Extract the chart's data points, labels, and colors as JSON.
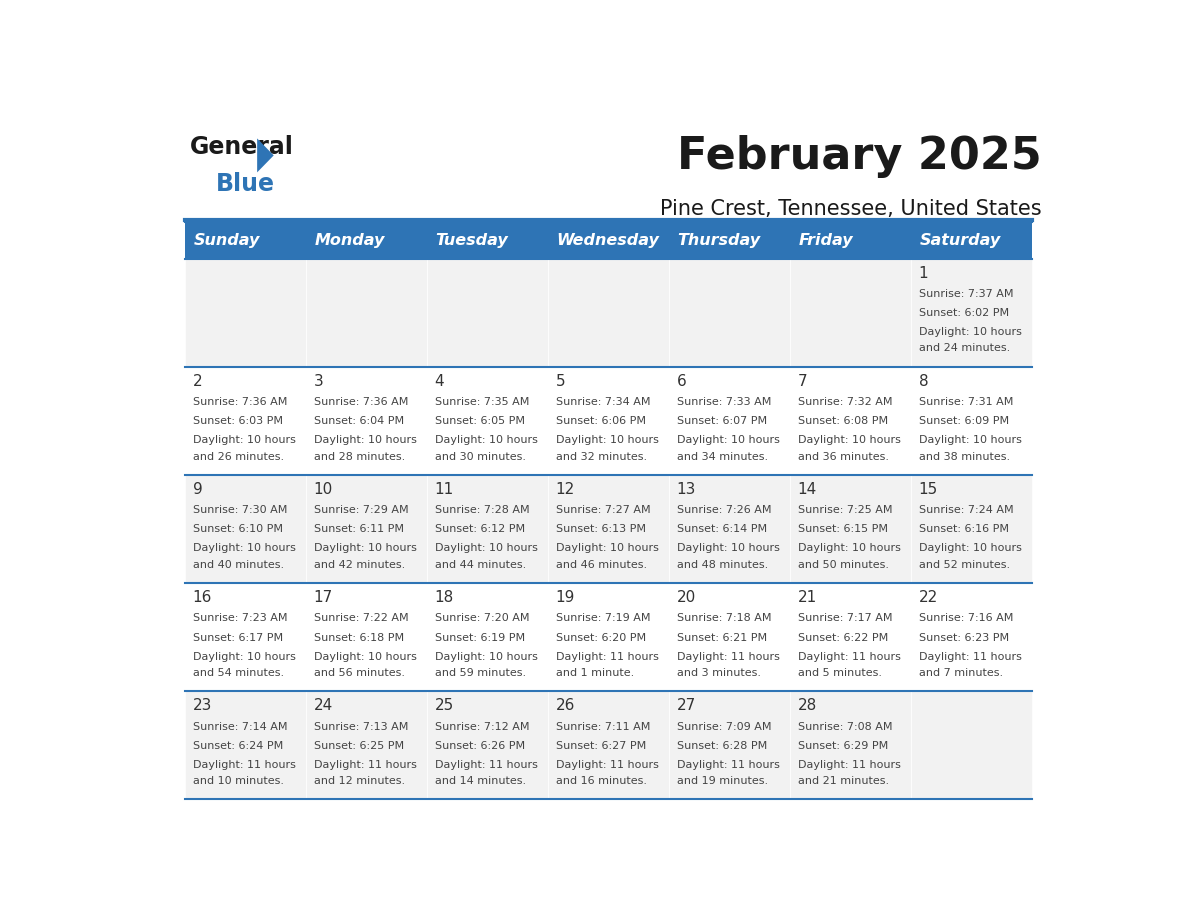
{
  "title": "February 2025",
  "subtitle": "Pine Crest, Tennessee, United States",
  "days_of_week": [
    "Sunday",
    "Monday",
    "Tuesday",
    "Wednesday",
    "Thursday",
    "Friday",
    "Saturday"
  ],
  "header_bg": "#2E74B5",
  "header_text": "#FFFFFF",
  "cell_bg_light": "#FFFFFF",
  "cell_bg_dark": "#F2F2F2",
  "divider_color": "#2E74B5",
  "text_color": "#444444",
  "day_num_color": "#333333",
  "calendar_data": [
    [
      null,
      null,
      null,
      null,
      null,
      null,
      {
        "day": "1",
        "sunrise": "7:37 AM",
        "sunset": "6:02 PM",
        "daylight": "10 hours and 24 minutes."
      }
    ],
    [
      {
        "day": "2",
        "sunrise": "7:36 AM",
        "sunset": "6:03 PM",
        "daylight": "10 hours and 26 minutes."
      },
      {
        "day": "3",
        "sunrise": "7:36 AM",
        "sunset": "6:04 PM",
        "daylight": "10 hours and 28 minutes."
      },
      {
        "day": "4",
        "sunrise": "7:35 AM",
        "sunset": "6:05 PM",
        "daylight": "10 hours and 30 minutes."
      },
      {
        "day": "5",
        "sunrise": "7:34 AM",
        "sunset": "6:06 PM",
        "daylight": "10 hours and 32 minutes."
      },
      {
        "day": "6",
        "sunrise": "7:33 AM",
        "sunset": "6:07 PM",
        "daylight": "10 hours and 34 minutes."
      },
      {
        "day": "7",
        "sunrise": "7:32 AM",
        "sunset": "6:08 PM",
        "daylight": "10 hours and 36 minutes."
      },
      {
        "day": "8",
        "sunrise": "7:31 AM",
        "sunset": "6:09 PM",
        "daylight": "10 hours and 38 minutes."
      }
    ],
    [
      {
        "day": "9",
        "sunrise": "7:30 AM",
        "sunset": "6:10 PM",
        "daylight": "10 hours and 40 minutes."
      },
      {
        "day": "10",
        "sunrise": "7:29 AM",
        "sunset": "6:11 PM",
        "daylight": "10 hours and 42 minutes."
      },
      {
        "day": "11",
        "sunrise": "7:28 AM",
        "sunset": "6:12 PM",
        "daylight": "10 hours and 44 minutes."
      },
      {
        "day": "12",
        "sunrise": "7:27 AM",
        "sunset": "6:13 PM",
        "daylight": "10 hours and 46 minutes."
      },
      {
        "day": "13",
        "sunrise": "7:26 AM",
        "sunset": "6:14 PM",
        "daylight": "10 hours and 48 minutes."
      },
      {
        "day": "14",
        "sunrise": "7:25 AM",
        "sunset": "6:15 PM",
        "daylight": "10 hours and 50 minutes."
      },
      {
        "day": "15",
        "sunrise": "7:24 AM",
        "sunset": "6:16 PM",
        "daylight": "10 hours and 52 minutes."
      }
    ],
    [
      {
        "day": "16",
        "sunrise": "7:23 AM",
        "sunset": "6:17 PM",
        "daylight": "10 hours and 54 minutes."
      },
      {
        "day": "17",
        "sunrise": "7:22 AM",
        "sunset": "6:18 PM",
        "daylight": "10 hours and 56 minutes."
      },
      {
        "day": "18",
        "sunrise": "7:20 AM",
        "sunset": "6:19 PM",
        "daylight": "10 hours and 59 minutes."
      },
      {
        "day": "19",
        "sunrise": "7:19 AM",
        "sunset": "6:20 PM",
        "daylight": "11 hours and 1 minute."
      },
      {
        "day": "20",
        "sunrise": "7:18 AM",
        "sunset": "6:21 PM",
        "daylight": "11 hours and 3 minutes."
      },
      {
        "day": "21",
        "sunrise": "7:17 AM",
        "sunset": "6:22 PM",
        "daylight": "11 hours and 5 minutes."
      },
      {
        "day": "22",
        "sunrise": "7:16 AM",
        "sunset": "6:23 PM",
        "daylight": "11 hours and 7 minutes."
      }
    ],
    [
      {
        "day": "23",
        "sunrise": "7:14 AM",
        "sunset": "6:24 PM",
        "daylight": "11 hours and 10 minutes."
      },
      {
        "day": "24",
        "sunrise": "7:13 AM",
        "sunset": "6:25 PM",
        "daylight": "11 hours and 12 minutes."
      },
      {
        "day": "25",
        "sunrise": "7:12 AM",
        "sunset": "6:26 PM",
        "daylight": "11 hours and 14 minutes."
      },
      {
        "day": "26",
        "sunrise": "7:11 AM",
        "sunset": "6:27 PM",
        "daylight": "11 hours and 16 minutes."
      },
      {
        "day": "27",
        "sunrise": "7:09 AM",
        "sunset": "6:28 PM",
        "daylight": "11 hours and 19 minutes."
      },
      {
        "day": "28",
        "sunrise": "7:08 AM",
        "sunset": "6:29 PM",
        "daylight": "11 hours and 21 minutes."
      },
      null
    ]
  ],
  "logo_text_general": "General",
  "logo_text_blue": "Blue",
  "logo_color_general": "#1a1a1a",
  "logo_color_blue": "#2E74B5",
  "logo_triangle_color": "#2E74B5"
}
